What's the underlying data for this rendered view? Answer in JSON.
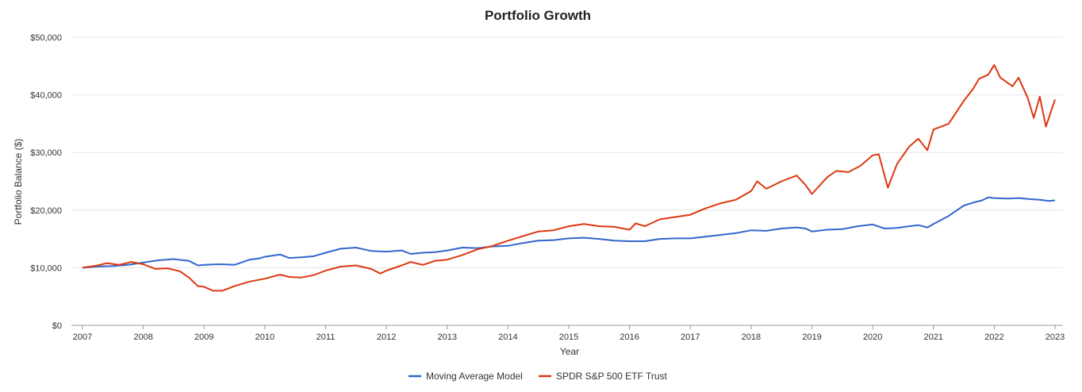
{
  "chart_data": {
    "type": "line",
    "title": "Portfolio Growth",
    "xlabel": "Year",
    "ylabel": "Portfolio Balance ($)",
    "xlim": [
      2007,
      2023
    ],
    "ylim": [
      0,
      50000
    ],
    "x_ticks": [
      "2007",
      "2008",
      "2009",
      "2010",
      "2011",
      "2012",
      "2013",
      "2014",
      "2015",
      "2016",
      "2017",
      "2018",
      "2019",
      "2020",
      "2021",
      "2022",
      "2023"
    ],
    "y_ticks": [
      "$0",
      "$10,000",
      "$20,000",
      "$30,000",
      "$40,000",
      "$50,000"
    ],
    "y_tick_values": [
      0,
      10000,
      20000,
      30000,
      40000,
      50000
    ],
    "grid": "horizontal",
    "legend_position": "bottom-center",
    "colors": {
      "Moving Average Model": "#3366cc",
      "SPDR S&P 500 ETF Trust": "#dc3912"
    },
    "series": [
      {
        "name": "Moving Average Model",
        "x": [
          2007.0,
          2007.25,
          2007.5,
          2007.75,
          2008.0,
          2008.25,
          2008.5,
          2008.75,
          2008.9,
          2009.0,
          2009.25,
          2009.5,
          2009.75,
          2009.9,
          2010.0,
          2010.25,
          2010.4,
          2010.6,
          2010.8,
          2011.0,
          2011.25,
          2011.5,
          2011.75,
          2012.0,
          2012.25,
          2012.4,
          2012.6,
          2012.8,
          2013.0,
          2013.25,
          2013.5,
          2013.75,
          2014.0,
          2014.25,
          2014.5,
          2014.75,
          2015.0,
          2015.25,
          2015.5,
          2015.75,
          2016.0,
          2016.25,
          2016.5,
          2016.75,
          2017.0,
          2017.25,
          2017.5,
          2017.75,
          2018.0,
          2018.25,
          2018.5,
          2018.75,
          2018.9,
          2019.0,
          2019.25,
          2019.5,
          2019.75,
          2020.0,
          2020.2,
          2020.4,
          2020.6,
          2020.75,
          2020.9,
          2021.0,
          2021.25,
          2021.5,
          2021.65,
          2021.8,
          2021.9,
          2022.0,
          2022.2,
          2022.4,
          2022.6,
          2022.75,
          2022.9,
          2023.0
        ],
        "values": [
          10000,
          10200,
          10300,
          10500,
          10900,
          11300,
          11500,
          11200,
          10400,
          10500,
          10600,
          10500,
          11400,
          11600,
          11900,
          12300,
          11700,
          11800,
          12000,
          12600,
          13300,
          13500,
          12900,
          12800,
          13000,
          12400,
          12600,
          12700,
          13000,
          13500,
          13400,
          13700,
          13800,
          14300,
          14700,
          14800,
          15100,
          15200,
          15000,
          14700,
          14600,
          14600,
          15000,
          15100,
          15100,
          15400,
          15700,
          16000,
          16500,
          16400,
          16800,
          17000,
          16800,
          16300,
          16600,
          16700,
          17200,
          17500,
          16800,
          16900,
          17200,
          17400,
          17000,
          17600,
          19000,
          20800,
          21300,
          21700,
          22200,
          22100,
          22000,
          22100,
          21900,
          21800,
          21600,
          21700
        ]
      },
      {
        "name": "SPDR S&P 500 ETF Trust",
        "x": [
          2007.0,
          2007.25,
          2007.4,
          2007.6,
          2007.8,
          2008.0,
          2008.2,
          2008.4,
          2008.6,
          2008.75,
          2008.9,
          2009.0,
          2009.15,
          2009.3,
          2009.5,
          2009.75,
          2010.0,
          2010.25,
          2010.4,
          2010.6,
          2010.8,
          2011.0,
          2011.25,
          2011.5,
          2011.75,
          2011.9,
          2012.0,
          2012.25,
          2012.4,
          2012.6,
          2012.8,
          2013.0,
          2013.25,
          2013.5,
          2013.75,
          2014.0,
          2014.25,
          2014.5,
          2014.75,
          2015.0,
          2015.25,
          2015.5,
          2015.75,
          2016.0,
          2016.1,
          2016.25,
          2016.5,
          2016.75,
          2017.0,
          2017.25,
          2017.5,
          2017.75,
          2018.0,
          2018.1,
          2018.25,
          2018.5,
          2018.75,
          2018.9,
          2019.0,
          2019.25,
          2019.4,
          2019.6,
          2019.8,
          2020.0,
          2020.1,
          2020.25,
          2020.4,
          2020.6,
          2020.75,
          2020.9,
          2021.0,
          2021.25,
          2021.5,
          2021.65,
          2021.75,
          2021.9,
          2022.0,
          2022.1,
          2022.3,
          2022.4,
          2022.55,
          2022.65,
          2022.75,
          2022.85,
          2023.0
        ],
        "values": [
          10000,
          10400,
          10800,
          10500,
          11000,
          10600,
          9800,
          9900,
          9400,
          8300,
          6800,
          6700,
          6000,
          6000,
          6800,
          7600,
          8100,
          8800,
          8400,
          8300,
          8700,
          9500,
          10200,
          10400,
          9800,
          9000,
          9500,
          10400,
          11000,
          10500,
          11200,
          11400,
          12200,
          13200,
          13800,
          14700,
          15500,
          16300,
          16500,
          17200,
          17600,
          17200,
          17100,
          16600,
          17700,
          17200,
          18400,
          18800,
          19200,
          20300,
          21200,
          21800,
          23300,
          25000,
          23700,
          25000,
          26000,
          24300,
          22800,
          25700,
          26800,
          26600,
          27700,
          29500,
          29700,
          23900,
          28000,
          31000,
          32400,
          30400,
          34000,
          35000,
          39000,
          41000,
          42800,
          43500,
          45200,
          43000,
          41500,
          43000,
          39500,
          36000,
          39700,
          34500,
          39200
        ]
      }
    ]
  }
}
